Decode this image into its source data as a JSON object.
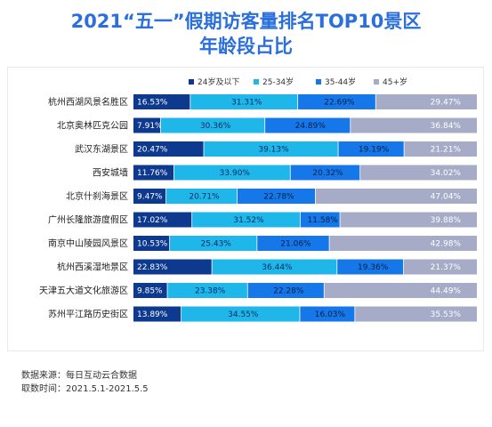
{
  "header": {
    "title_line1": "2021“五一”假期访客量排名TOP10景区",
    "title_line2": "年龄段占比"
  },
  "footer": {
    "source": "数据来源：每日互动云合数据",
    "period": "取数时间：2021.5.1-2021.5.5"
  },
  "chart_data": {
    "type": "bar",
    "orientation": "horizontal",
    "stacked": true,
    "normalized": true,
    "title": "2021“五一”假期访客量排名TOP10景区年龄段占比",
    "legend_position": "top",
    "categories": [
      "杭州西湖风景名胜区",
      "北京奥林匹克公园",
      "武汉东湖景区",
      "西安城墙",
      "北京什刹海景区",
      "广州长隆旅游度假区",
      "南京中山陵园风景区",
      "杭州西溪湿地景区",
      "天津五大道文化旅游区",
      "苏州平江路历史街区"
    ],
    "series": [
      {
        "name": "24岁及以下",
        "color": "#0d3a8e",
        "values": [
          16.53,
          7.91,
          20.47,
          11.76,
          9.47,
          17.02,
          10.53,
          22.83,
          9.85,
          13.89
        ]
      },
      {
        "name": "25-34岁",
        "color": "#1fb6ea",
        "values": [
          31.31,
          30.36,
          39.13,
          33.9,
          20.71,
          31.52,
          25.43,
          36.44,
          23.38,
          34.55
        ]
      },
      {
        "name": "35-44岁",
        "color": "#1677e8",
        "values": [
          22.69,
          24.89,
          19.19,
          20.32,
          22.78,
          11.58,
          21.06,
          19.36,
          22.28,
          16.03
        ]
      },
      {
        "name": "45+岁",
        "color": "#a6acc7",
        "values": [
          29.47,
          36.84,
          21.21,
          34.02,
          47.04,
          39.88,
          42.98,
          21.37,
          44.49,
          35.53
        ]
      }
    ],
    "value_suffix": "%",
    "xlim": [
      0,
      100
    ],
    "grid": false
  }
}
